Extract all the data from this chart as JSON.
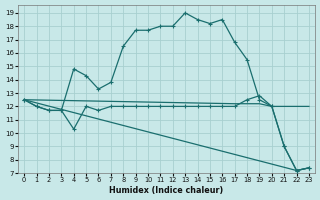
{
  "xlabel": "Humidex (Indice chaleur)",
  "bg_color": "#c8e8e8",
  "line_color": "#1a6e6e",
  "grid_color": "#a8d0d0",
  "xlim": [
    -0.5,
    23.5
  ],
  "ylim": [
    7,
    19.6
  ],
  "yticks": [
    7,
    8,
    9,
    10,
    11,
    12,
    13,
    14,
    15,
    16,
    17,
    18,
    19
  ],
  "xticks": [
    0,
    1,
    2,
    3,
    4,
    5,
    6,
    7,
    8,
    9,
    10,
    11,
    12,
    13,
    14,
    15,
    16,
    17,
    18,
    19,
    20,
    21,
    22,
    23
  ],
  "series": [
    {
      "x": [
        0,
        1,
        2,
        3,
        4,
        5,
        6,
        7,
        8,
        9,
        10,
        11,
        12,
        13,
        14,
        15,
        16,
        17,
        18,
        19,
        20,
        21,
        22,
        23
      ],
      "y": [
        12.5,
        12.0,
        11.7,
        11.7,
        14.8,
        14.3,
        13.3,
        13.8,
        16.5,
        17.7,
        17.7,
        18.0,
        18.0,
        19.0,
        18.5,
        18.2,
        18.5,
        16.8,
        15.5,
        12.5,
        12.0,
        9.0,
        7.2,
        7.4
      ],
      "markers": true
    },
    {
      "x": [
        0,
        1,
        2,
        3,
        4,
        5,
        6,
        7,
        8,
        9,
        10,
        11,
        12,
        13,
        14,
        15,
        16,
        17,
        18,
        19,
        20,
        21,
        22,
        23
      ],
      "y": [
        12.5,
        12.0,
        11.7,
        11.7,
        10.3,
        12.0,
        11.7,
        12.0,
        12.0,
        12.0,
        12.0,
        12.0,
        12.0,
        12.0,
        12.0,
        12.0,
        12.0,
        12.0,
        12.5,
        12.8,
        12.0,
        9.0,
        7.2,
        7.4
      ],
      "markers": true
    },
    {
      "x": [
        0,
        22,
        23
      ],
      "y": [
        12.5,
        7.2,
        7.4
      ],
      "markers": false
    },
    {
      "x": [
        0,
        17,
        18,
        19,
        20,
        21,
        22,
        23
      ],
      "y": [
        12.5,
        12.2,
        12.2,
        12.2,
        12.0,
        12.0,
        12.0,
        12.0
      ],
      "markers": false
    }
  ]
}
